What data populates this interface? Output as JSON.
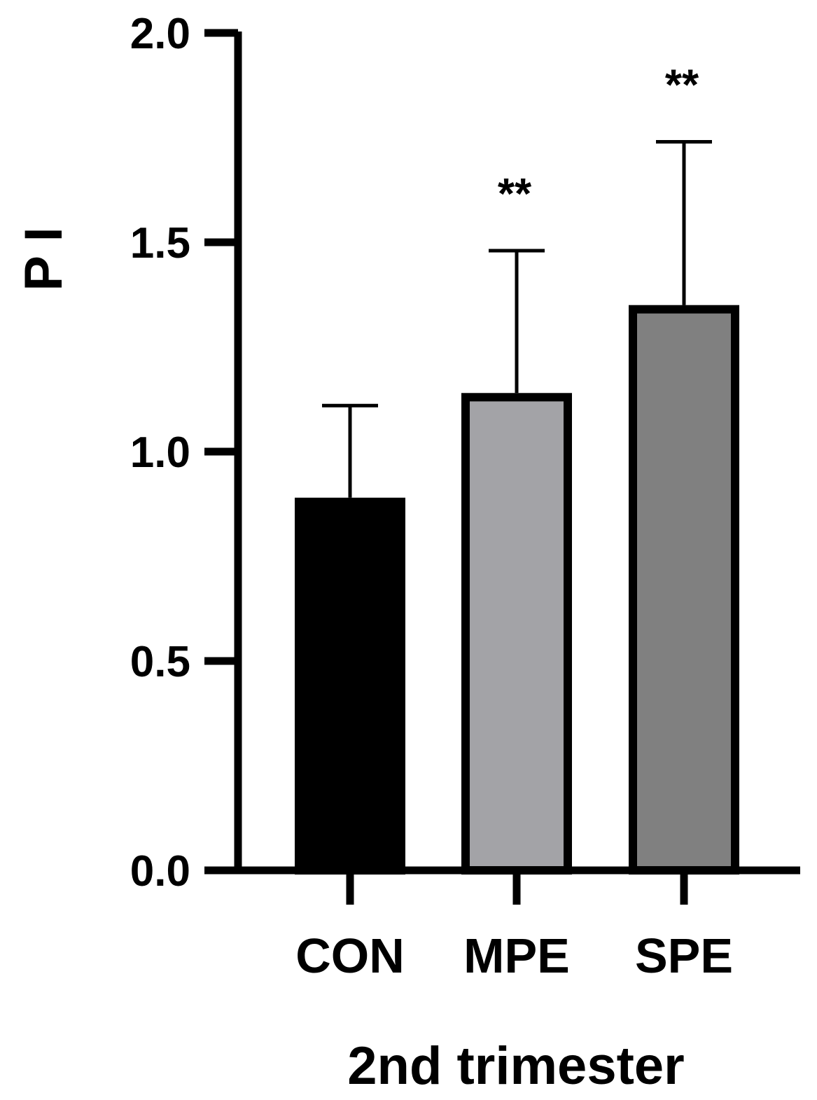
{
  "chart_data": {
    "type": "bar",
    "categories": [
      "CON",
      "MPE",
      "SPE"
    ],
    "values": [
      0.89,
      1.14,
      1.35
    ],
    "errors": [
      0.22,
      0.34,
      0.39
    ],
    "significance": [
      "",
      "**",
      "**"
    ],
    "ylabel": "P I",
    "xlabel": "2nd trimester",
    "ylim": [
      0,
      2.0
    ],
    "yticks": [
      "0.0",
      "0.5",
      "1.0",
      "1.5",
      "2.0"
    ],
    "grid": false,
    "colors": {
      "CON": "#000000",
      "MPE": "#a3a3a7",
      "SPE": "#808080",
      "outline": "#000000"
    }
  }
}
